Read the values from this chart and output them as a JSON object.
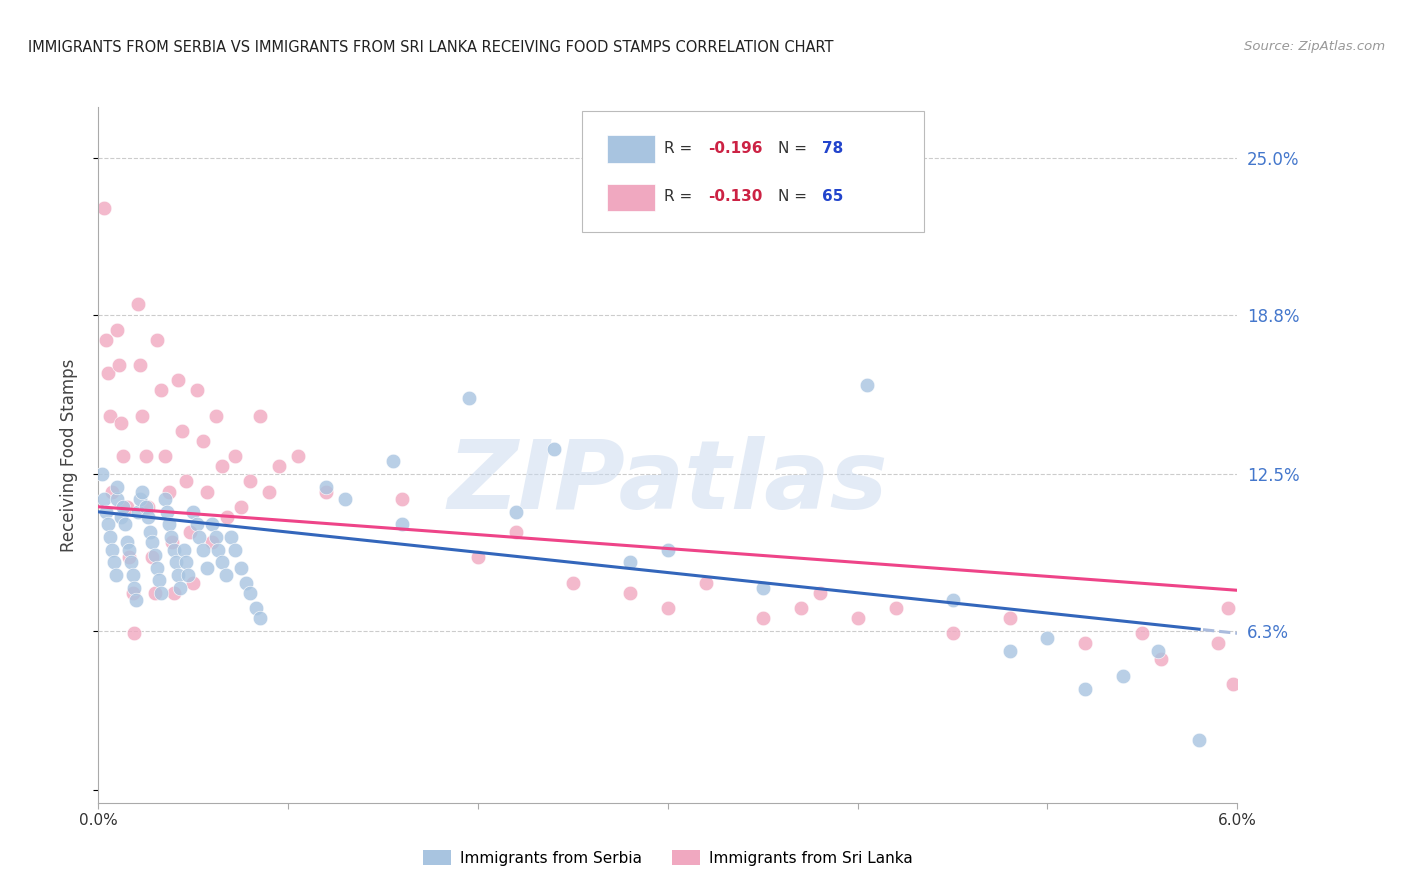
{
  "title": "IMMIGRANTS FROM SERBIA VS IMMIGRANTS FROM SRI LANKA RECEIVING FOOD STAMPS CORRELATION CHART",
  "source": "Source: ZipAtlas.com",
  "ylabel": "Receiving Food Stamps",
  "yticks": [
    0.0,
    0.063,
    0.125,
    0.188,
    0.25
  ],
  "ytick_labels": [
    "",
    "6.3%",
    "12.5%",
    "18.8%",
    "25.0%"
  ],
  "xlim": [
    0.0,
    0.06
  ],
  "ylim": [
    -0.005,
    0.27
  ],
  "watermark": "ZIPatlas",
  "serbia_color": "#A8C4E0",
  "srilanka_color": "#F0A8C0",
  "serbia_line_color": "#3366BB",
  "srilanka_line_color": "#EE4488",
  "serbia_dash_color": "#AABBDD",
  "grid_color": "#CCCCCC",
  "background_color": "#FFFFFF",
  "serbia_x": [
    0.0002,
    0.0003,
    0.0004,
    0.0005,
    0.0006,
    0.0007,
    0.0008,
    0.0009,
    0.001,
    0.001,
    0.0012,
    0.0013,
    0.0014,
    0.0015,
    0.0016,
    0.0017,
    0.0018,
    0.0019,
    0.002,
    0.0021,
    0.0022,
    0.0023,
    0.0025,
    0.0026,
    0.0027,
    0.0028,
    0.003,
    0.0031,
    0.0032,
    0.0033,
    0.0035,
    0.0036,
    0.0037,
    0.0038,
    0.004,
    0.0041,
    0.0042,
    0.0043,
    0.0045,
    0.0046,
    0.0047,
    0.005,
    0.0052,
    0.0053,
    0.0055,
    0.0057,
    0.006,
    0.0062,
    0.0063,
    0.0065,
    0.0067,
    0.007,
    0.0072,
    0.0075,
    0.0078,
    0.008,
    0.0083,
    0.0085,
    0.012,
    0.013,
    0.0155,
    0.016,
    0.0195,
    0.022,
    0.024,
    0.028,
    0.03,
    0.035,
    0.0405,
    0.045,
    0.048,
    0.05,
    0.052,
    0.054,
    0.0558,
    0.058
  ],
  "serbia_y": [
    0.125,
    0.115,
    0.11,
    0.105,
    0.1,
    0.095,
    0.09,
    0.085,
    0.115,
    0.12,
    0.108,
    0.112,
    0.105,
    0.098,
    0.095,
    0.09,
    0.085,
    0.08,
    0.075,
    0.11,
    0.115,
    0.118,
    0.112,
    0.108,
    0.102,
    0.098,
    0.093,
    0.088,
    0.083,
    0.078,
    0.115,
    0.11,
    0.105,
    0.1,
    0.095,
    0.09,
    0.085,
    0.08,
    0.095,
    0.09,
    0.085,
    0.11,
    0.105,
    0.1,
    0.095,
    0.088,
    0.105,
    0.1,
    0.095,
    0.09,
    0.085,
    0.1,
    0.095,
    0.088,
    0.082,
    0.078,
    0.072,
    0.068,
    0.12,
    0.115,
    0.13,
    0.105,
    0.155,
    0.11,
    0.135,
    0.09,
    0.095,
    0.08,
    0.16,
    0.075,
    0.055,
    0.06,
    0.04,
    0.045,
    0.055,
    0.02
  ],
  "srilanka_x": [
    0.0003,
    0.0004,
    0.0005,
    0.0006,
    0.0007,
    0.001,
    0.0011,
    0.0012,
    0.0013,
    0.0015,
    0.0016,
    0.0018,
    0.0019,
    0.0021,
    0.0022,
    0.0023,
    0.0025,
    0.0026,
    0.0028,
    0.003,
    0.0031,
    0.0033,
    0.0035,
    0.0037,
    0.0039,
    0.004,
    0.0042,
    0.0044,
    0.0046,
    0.0048,
    0.005,
    0.0052,
    0.0055,
    0.0057,
    0.006,
    0.0062,
    0.0065,
    0.0068,
    0.0072,
    0.0075,
    0.008,
    0.0085,
    0.009,
    0.0095,
    0.0105,
    0.012,
    0.016,
    0.02,
    0.022,
    0.025,
    0.028,
    0.03,
    0.032,
    0.035,
    0.037,
    0.038,
    0.04,
    0.042,
    0.045,
    0.048,
    0.052,
    0.055,
    0.056,
    0.059,
    0.0595,
    0.0598
  ],
  "srilanka_y": [
    0.23,
    0.178,
    0.165,
    0.148,
    0.118,
    0.182,
    0.168,
    0.145,
    0.132,
    0.112,
    0.092,
    0.078,
    0.062,
    0.192,
    0.168,
    0.148,
    0.132,
    0.112,
    0.092,
    0.078,
    0.178,
    0.158,
    0.132,
    0.118,
    0.098,
    0.078,
    0.162,
    0.142,
    0.122,
    0.102,
    0.082,
    0.158,
    0.138,
    0.118,
    0.098,
    0.148,
    0.128,
    0.108,
    0.132,
    0.112,
    0.122,
    0.148,
    0.118,
    0.128,
    0.132,
    0.118,
    0.115,
    0.092,
    0.102,
    0.082,
    0.078,
    0.072,
    0.082,
    0.068,
    0.072,
    0.078,
    0.068,
    0.072,
    0.062,
    0.068,
    0.058,
    0.062,
    0.052,
    0.058,
    0.072,
    0.042
  ]
}
